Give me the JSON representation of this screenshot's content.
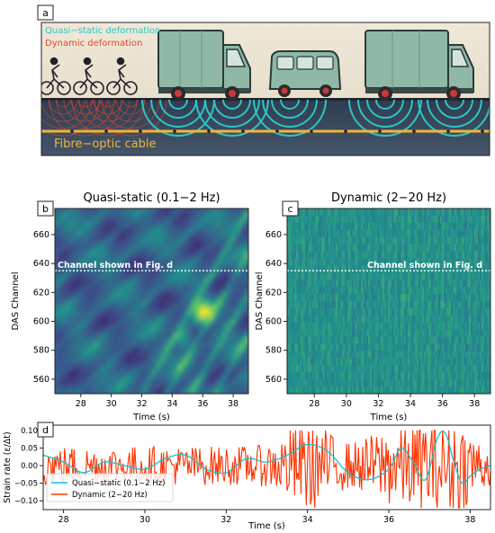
{
  "panels": {
    "a": {
      "label": "a",
      "legend": {
        "quasi": "Quasi−static deformation",
        "dynamic": "Dynamic deformation"
      },
      "cable_label": "Fibre−optic cable",
      "colors": {
        "quasi": "#2ec4c4",
        "dynamic": "#e8452c",
        "cable": "#f2b43a",
        "ground": "#3b4a5e",
        "sky": "#e8e0cf",
        "truck": "#8fb8a6"
      }
    },
    "b": {
      "label": "b",
      "title": "Quasi-static (0.1−2 Hz)",
      "annotation": "Channel shown in Fig. d"
    },
    "c": {
      "label": "c",
      "title": "Dynamic (2−20 Hz)",
      "annotation": "Channel shown in Fig. d"
    },
    "d": {
      "label": "d"
    }
  },
  "chart_data": [
    {
      "type": "heatmap",
      "title": "Quasi-static (0.1−2 Hz)",
      "xlabel": "Time (s)",
      "ylabel": "DAS Channel",
      "xlim": [
        26.3,
        39.0
      ],
      "ylim": [
        550,
        678
      ],
      "x_ticks": [
        "28",
        "30",
        "32",
        "34",
        "36",
        "38"
      ],
      "y_ticks": [
        "560",
        "580",
        "600",
        "620",
        "640",
        "660"
      ],
      "highlighted_channel": 635,
      "colormap": "viridis",
      "annotation": "Channel shown in Fig. d"
    },
    {
      "type": "heatmap",
      "title": "Dynamic (2−20 Hz)",
      "xlabel": "Time (s)",
      "ylabel": "DAS Channel",
      "xlim": [
        26.3,
        39.0
      ],
      "ylim": [
        550,
        678
      ],
      "x_ticks": [
        "28",
        "30",
        "32",
        "34",
        "36",
        "38"
      ],
      "y_ticks": [
        "560",
        "580",
        "600",
        "620",
        "640",
        "660"
      ],
      "highlighted_channel": 635,
      "colormap": "viridis",
      "annotation": "Channel shown in Fig. d"
    },
    {
      "type": "line",
      "xlabel": "Time (s)",
      "ylabel": "Strain rate (ε/Δt)",
      "xlim": [
        27.5,
        38.5
      ],
      "ylim": [
        -0.125,
        0.115
      ],
      "x_ticks": [
        "28",
        "30",
        "32",
        "34",
        "36",
        "38"
      ],
      "y_ticks": [
        "−0.10",
        "−0.05",
        "0.00",
        "0.05",
        "0.10"
      ],
      "legend_position": "lower-left",
      "series": [
        {
          "name": "Quasi−static (0.1−2 Hz)",
          "color": "#17becf",
          "x": [
            27.5,
            28.0,
            28.5,
            29.0,
            29.5,
            30.0,
            30.5,
            31.0,
            31.5,
            32.0,
            32.5,
            33.0,
            33.5,
            34.0,
            34.5,
            35.0,
            35.5,
            36.0,
            36.3,
            36.6,
            36.9,
            37.2,
            37.4,
            37.6,
            37.8,
            38.0,
            38.25,
            38.5
          ],
          "y": [
            0.03,
            0.01,
            -0.02,
            0.01,
            0.0,
            -0.01,
            0.02,
            0.03,
            -0.01,
            -0.02,
            0.02,
            0.01,
            0.03,
            0.06,
            0.04,
            -0.02,
            -0.04,
            -0.01,
            0.05,
            0.01,
            -0.04,
            0.08,
            0.09,
            0.01,
            -0.05,
            -0.03,
            -0.01,
            0.0
          ]
        },
        {
          "name": "Dynamic (2−20 Hz)",
          "color": "#ff3300",
          "x": [
            27.5,
            38.5
          ],
          "amplitude_range": [
            -0.12,
            0.1
          ],
          "samples": 420
        }
      ]
    }
  ]
}
